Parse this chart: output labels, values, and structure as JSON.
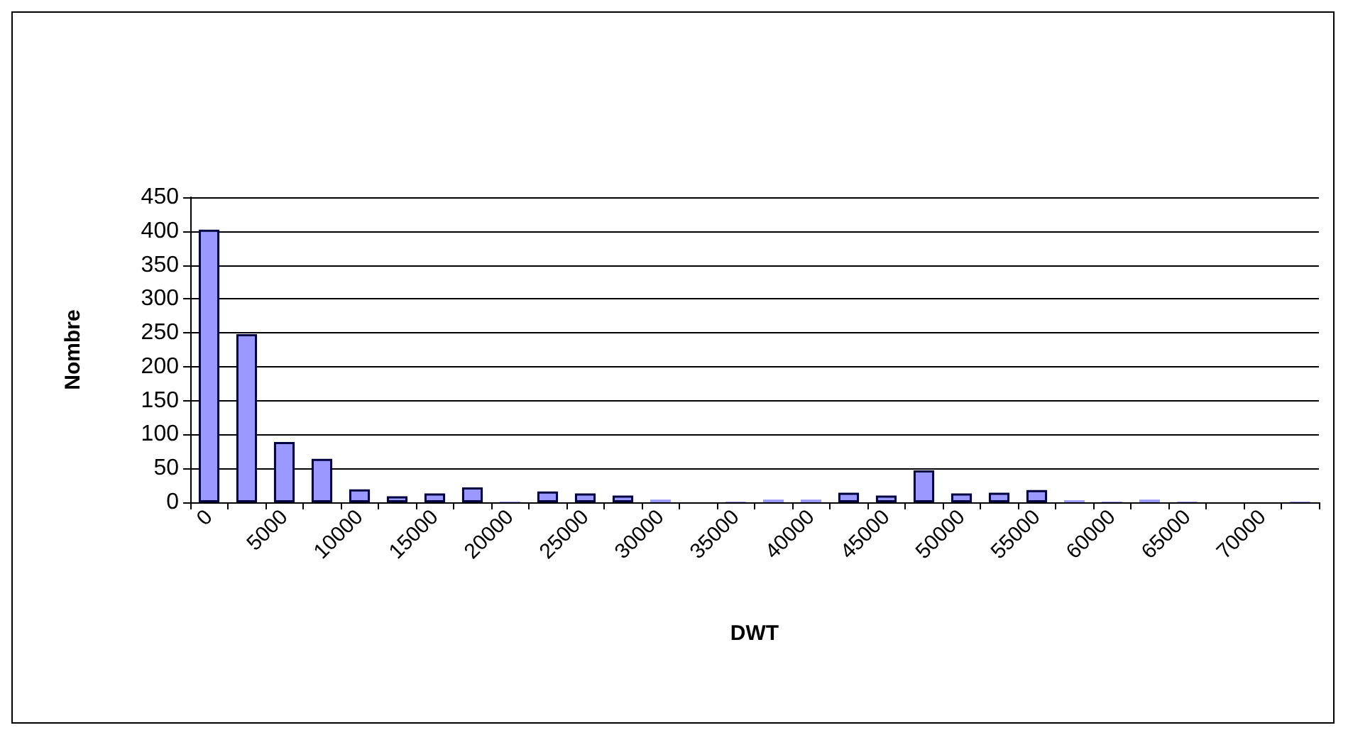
{
  "chart_data": {
    "type": "bar",
    "xlabel": "DWT",
    "ylabel": "Nombre",
    "categories": [
      "0",
      null,
      "5000",
      null,
      "10000",
      null,
      "15000",
      null,
      "20000",
      null,
      "25000",
      null,
      "30000",
      null,
      "35000",
      null,
      "40000",
      null,
      "45000",
      null,
      "50000",
      null,
      "55000",
      null,
      "60000",
      null,
      "65000",
      null,
      "70000",
      null
    ],
    "values": [
      402,
      248,
      89,
      64,
      19,
      9,
      13,
      22,
      1,
      16,
      13,
      10,
      4,
      0,
      1,
      4,
      4,
      14,
      10,
      47,
      13,
      14,
      18,
      3,
      1,
      4,
      1,
      0,
      0,
      1
    ],
    "color": "#9999ff",
    "ylim": [
      0,
      450
    ],
    "yticks": [
      0,
      50,
      100,
      150,
      200,
      250,
      300,
      350,
      400,
      450
    ],
    "grid": "y"
  }
}
